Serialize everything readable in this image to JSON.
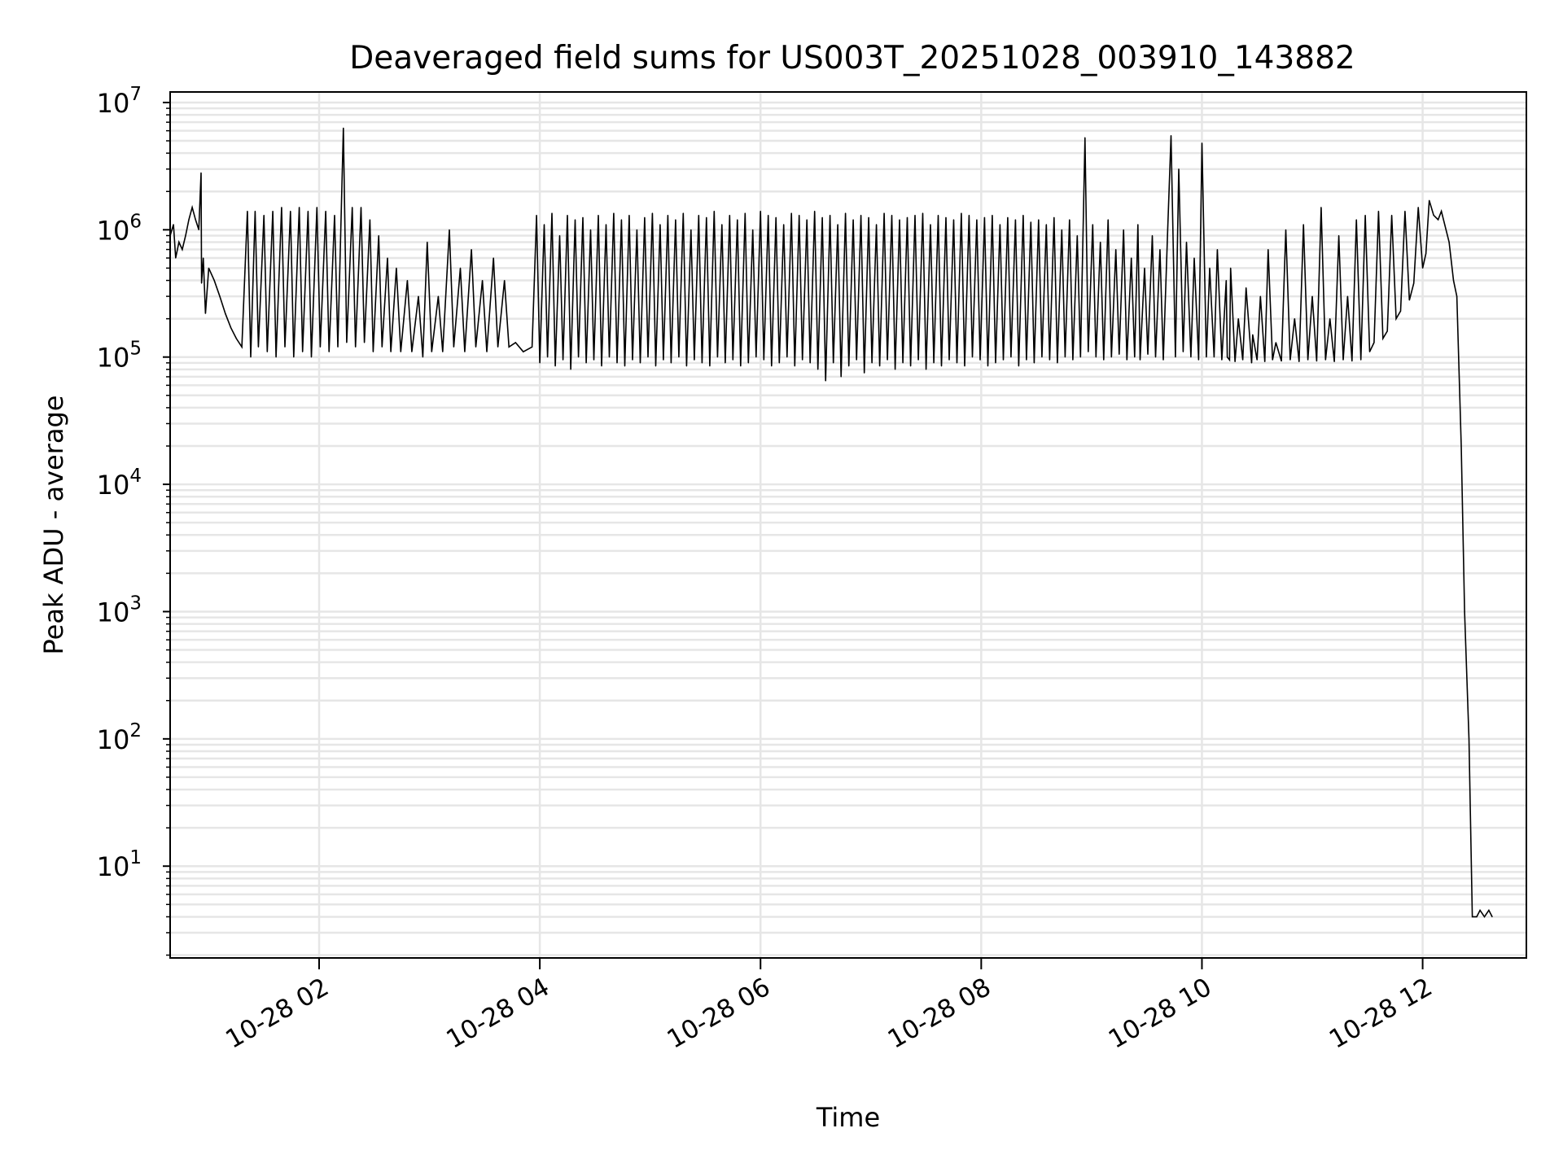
{
  "chart_data": {
    "type": "line",
    "title": "Deaveraged field sums for US003T_20251028_003910_143882",
    "xlabel": "Time",
    "ylabel": "Peak ADU - average",
    "yscale": "log",
    "xlim_hours": [
      0.65,
      12.94
    ],
    "ylim": [
      1.9,
      12100000
    ],
    "grid": true,
    "x_ticks": [
      {
        "hour": 2,
        "label": "10-28 02"
      },
      {
        "hour": 4,
        "label": "10-28 04"
      },
      {
        "hour": 6,
        "label": "10-28 06"
      },
      {
        "hour": 8,
        "label": "10-28 08"
      },
      {
        "hour": 10,
        "label": "10-28 10"
      },
      {
        "hour": 12,
        "label": "10-28 12"
      }
    ],
    "y_ticks": [
      {
        "exp": 1,
        "base": "10",
        "sup": "1"
      },
      {
        "exp": 2,
        "base": "10",
        "sup": "2"
      },
      {
        "exp": 3,
        "base": "10",
        "sup": "3"
      },
      {
        "exp": 4,
        "base": "10",
        "sup": "4"
      },
      {
        "exp": 5,
        "base": "10",
        "sup": "5"
      },
      {
        "exp": 6,
        "base": "10",
        "sup": "6"
      },
      {
        "exp": 7,
        "base": "10",
        "sup": "7"
      }
    ],
    "series": [
      {
        "name": "field sums",
        "color": "#000000",
        "t_hours": [
          0.65,
          0.68,
          0.7,
          0.73,
          0.76,
          0.79,
          0.82,
          0.85,
          0.88,
          0.91,
          0.93,
          0.935,
          0.95,
          0.97,
          1.0,
          1.05,
          1.1,
          1.15,
          1.2,
          1.25,
          1.3,
          1.35,
          1.38,
          1.42,
          1.45,
          1.5,
          1.53,
          1.58,
          1.61,
          1.66,
          1.69,
          1.74,
          1.77,
          1.82,
          1.85,
          1.9,
          1.93,
          1.98,
          2.01,
          2.06,
          2.09,
          2.14,
          2.17,
          2.22,
          2.25,
          2.3,
          2.33,
          2.38,
          2.41,
          2.46,
          2.49,
          2.54,
          2.57,
          2.62,
          2.65,
          2.7,
          2.74,
          2.8,
          2.84,
          2.9,
          2.94,
          2.98,
          3.02,
          3.08,
          3.12,
          3.18,
          3.22,
          3.28,
          3.32,
          3.38,
          3.42,
          3.48,
          3.52,
          3.58,
          3.62,
          3.68,
          3.72,
          3.78,
          3.85,
          3.93,
          3.97,
          4.0,
          4.04,
          4.07,
          4.11,
          4.14,
          4.18,
          4.21,
          4.25,
          4.28,
          4.32,
          4.35,
          4.39,
          4.42,
          4.46,
          4.49,
          4.53,
          4.56,
          4.6,
          4.63,
          4.67,
          4.7,
          4.74,
          4.77,
          4.81,
          4.84,
          4.88,
          4.91,
          4.95,
          4.98,
          5.02,
          5.05,
          5.09,
          5.12,
          5.16,
          5.19,
          5.23,
          5.26,
          5.3,
          5.33,
          5.37,
          5.4,
          5.44,
          5.47,
          5.51,
          5.54,
          5.58,
          5.61,
          5.65,
          5.68,
          5.72,
          5.75,
          5.79,
          5.82,
          5.86,
          5.89,
          5.93,
          5.96,
          6.0,
          6.03,
          6.07,
          6.1,
          6.14,
          6.17,
          6.21,
          6.24,
          6.28,
          6.31,
          6.35,
          6.38,
          6.42,
          6.45,
          6.49,
          6.52,
          6.56,
          6.59,
          6.63,
          6.66,
          6.7,
          6.73,
          6.77,
          6.8,
          6.84,
          6.87,
          6.91,
          6.94,
          6.98,
          7.01,
          7.05,
          7.08,
          7.12,
          7.15,
          7.19,
          7.22,
          7.26,
          7.29,
          7.33,
          7.36,
          7.4,
          7.43,
          7.47,
          7.5,
          7.54,
          7.57,
          7.61,
          7.64,
          7.68,
          7.71,
          7.75,
          7.78,
          7.82,
          7.85,
          7.89,
          7.92,
          7.96,
          7.99,
          8.03,
          8.06,
          8.1,
          8.13,
          8.17,
          8.2,
          8.24,
          8.27,
          8.31,
          8.34,
          8.38,
          8.41,
          8.45,
          8.48,
          8.52,
          8.55,
          8.59,
          8.62,
          8.66,
          8.69,
          8.73,
          8.76,
          8.8,
          8.83,
          8.87,
          8.9,
          8.94,
          8.97,
          9.01,
          9.04,
          9.08,
          9.11,
          9.15,
          9.18,
          9.22,
          9.25,
          9.29,
          9.32,
          9.36,
          9.39,
          9.42,
          9.44,
          9.48,
          9.51,
          9.55,
          9.58,
          9.62,
          9.65,
          9.69,
          9.72,
          9.76,
          9.79,
          9.83,
          9.86,
          9.9,
          9.93,
          9.97,
          10.0,
          10.04,
          10.07,
          10.11,
          10.14,
          10.18,
          10.22,
          10.23,
          10.25,
          10.26,
          10.3,
          10.33,
          10.37,
          10.4,
          10.45,
          10.46,
          10.5,
          10.53,
          10.57,
          10.6,
          10.64,
          10.67,
          10.72,
          10.76,
          10.8,
          10.84,
          10.88,
          10.92,
          10.96,
          11.0,
          11.04,
          11.08,
          11.12,
          11.16,
          11.2,
          11.24,
          11.28,
          11.32,
          11.36,
          11.4,
          11.44,
          11.48,
          11.52,
          11.56,
          11.6,
          11.64,
          11.68,
          11.72,
          11.76,
          11.8,
          11.84,
          11.88,
          11.92,
          11.96,
          12.0,
          12.03,
          12.06,
          12.1,
          12.14,
          12.17,
          12.2,
          12.24,
          12.28,
          12.31,
          12.35,
          12.38,
          12.42,
          12.45,
          12.49,
          12.52,
          12.56,
          12.6,
          12.63,
          12.66,
          12.7,
          12.73,
          12.76,
          12.78,
          12.8,
          12.82,
          12.83,
          12.84,
          12.85,
          12.87,
          12.89,
          12.91,
          12.94
        ],
        "values": [
          900000,
          1100000,
          600000,
          800000,
          700000,
          900000,
          1200000,
          1500000,
          1200000,
          1000000,
          2800000,
          380000,
          600000,
          220000,
          500000,
          400000,
          300000,
          220000,
          170000,
          140000,
          120000,
          1400000,
          100000,
          1400000,
          120000,
          1300000,
          110000,
          1400000,
          100000,
          1500000,
          120000,
          1400000,
          100000,
          1500000,
          110000,
          1400000,
          100000,
          1500000,
          120000,
          1400000,
          110000,
          1300000,
          120000,
          6300000,
          130000,
          1500000,
          120000,
          1500000,
          130000,
          1200000,
          110000,
          900000,
          120000,
          600000,
          110000,
          500000,
          110000,
          400000,
          110000,
          300000,
          100000,
          800000,
          110000,
          300000,
          110000,
          1000000,
          120000,
          500000,
          110000,
          700000,
          120000,
          400000,
          110000,
          600000,
          120000,
          400000,
          120000,
          130000,
          110000,
          120000,
          1300000,
          90000,
          1100000,
          100000,
          1350000,
          85000,
          900000,
          95000,
          1300000,
          80000,
          1200000,
          100000,
          1250000,
          90000,
          1000000,
          95000,
          1300000,
          85000,
          1100000,
          100000,
          1350000,
          90000,
          1200000,
          85000,
          1300000,
          95000,
          1000000,
          90000,
          1250000,
          100000,
          1350000,
          85000,
          1100000,
          95000,
          1300000,
          90000,
          1200000,
          100000,
          1350000,
          85000,
          1000000,
          95000,
          1300000,
          90000,
          1250000,
          85000,
          1400000,
          100000,
          1100000,
          90000,
          1300000,
          95000,
          1200000,
          85000,
          1350000,
          90000,
          1000000,
          100000,
          1400000,
          95000,
          1300000,
          85000,
          1250000,
          90000,
          1100000,
          100000,
          1350000,
          85000,
          1300000,
          95000,
          1200000,
          90000,
          1400000,
          80000,
          1250000,
          65000,
          1300000,
          90000,
          1100000,
          70000,
          1350000,
          85000,
          1200000,
          95000,
          1300000,
          75000,
          1250000,
          90000,
          1100000,
          85000,
          1350000,
          95000,
          1300000,
          80000,
          1200000,
          90000,
          1250000,
          85000,
          1300000,
          95000,
          1350000,
          80000,
          1100000,
          90000,
          1300000,
          85000,
          1250000,
          95000,
          1200000,
          90000,
          1350000,
          85000,
          1300000,
          100000,
          1200000,
          95000,
          1250000,
          85000,
          1300000,
          90000,
          1100000,
          95000,
          1250000,
          100000,
          1200000,
          85000,
          1300000,
          95000,
          1150000,
          90000,
          1200000,
          100000,
          1100000,
          95000,
          1250000,
          90000,
          1000000,
          100000,
          1200000,
          95000,
          900000,
          100000,
          5300000,
          110000,
          1100000,
          100000,
          800000,
          95000,
          1200000,
          100000,
          700000,
          105000,
          1000000,
          95000,
          600000,
          100000,
          1100000,
          95000,
          500000,
          105000,
          900000,
          100000,
          700000,
          95000,
          1000000,
          5500000,
          100000,
          3000000,
          110000,
          800000,
          100000,
          600000,
          95000,
          4800000,
          100000,
          500000,
          100000,
          700000,
          95000,
          400000,
          100000,
          95000,
          500000,
          92000,
          200000,
          95000,
          350000,
          90000,
          150000,
          95000,
          300000,
          92000,
          700000,
          95000,
          130000,
          93000,
          1000000,
          95000,
          200000,
          92000,
          1100000,
          95000,
          300000,
          93000,
          1500000,
          95000,
          200000,
          92000,
          900000,
          95000,
          300000,
          93000,
          1200000,
          95000,
          1300000,
          110000,
          130000,
          1400000,
          140000,
          160000,
          1300000,
          200000,
          230000,
          1400000,
          280000,
          380000,
          1500000,
          500000,
          650000,
          1700000,
          1300000,
          1200000,
          1400000,
          1100000,
          800000,
          400000,
          300000,
          20000,
          1000,
          100,
          4,
          4,
          4.5,
          4,
          4.5,
          4
        ]
      }
    ]
  }
}
